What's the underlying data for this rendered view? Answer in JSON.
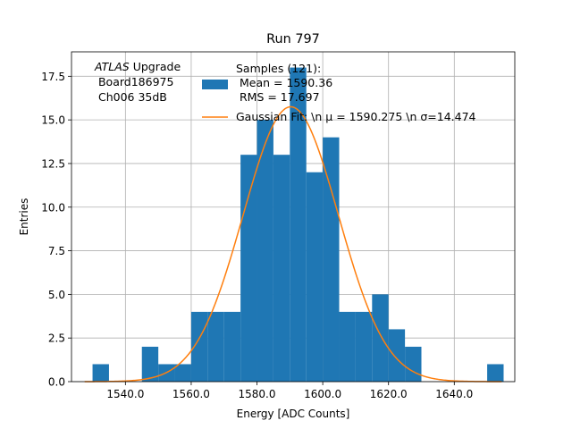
{
  "chart_data": {
    "type": "bar",
    "title": "Run 797",
    "xlabel": "Energy [ADC Counts]",
    "ylabel": "Entries",
    "xlim": [
      1523.6,
      1658.4
    ],
    "ylim": [
      0,
      18.9
    ],
    "xticks": [
      1540,
      1560,
      1580,
      1600,
      1620,
      1640
    ],
    "xtick_labels": [
      "1540.0",
      "1560.0",
      "1580.0",
      "1600.0",
      "1620.0",
      "1640.0"
    ],
    "yticks": [
      0,
      2.5,
      5,
      7.5,
      10,
      12.5,
      15,
      17.5
    ],
    "ytick_labels": [
      "0.0",
      "2.5",
      "5.0",
      "7.5",
      "10.0",
      "12.5",
      "15.0",
      "17.5"
    ],
    "grid": true,
    "bin_width": 5,
    "bin_starts": [
      1530,
      1535,
      1540,
      1545,
      1550,
      1555,
      1560,
      1565,
      1570,
      1575,
      1580,
      1585,
      1590,
      1595,
      1600,
      1605,
      1610,
      1615,
      1620,
      1625,
      1630,
      1635,
      1640,
      1645,
      1650
    ],
    "counts": [
      1,
      0,
      0,
      2,
      1,
      1,
      4,
      4,
      4,
      13,
      15,
      13,
      18,
      12,
      14,
      4,
      4,
      5,
      3,
      2,
      0,
      0,
      0,
      0,
      1
    ],
    "hist_color": "#1f77b4",
    "fit": {
      "mu": 1590.275,
      "sigma": 14.474,
      "amplitude": 15.75,
      "color": "#ff7f0e"
    },
    "annotation": {
      "italic": "ATLAS",
      "rest": " Upgrade",
      "lines": [
        " Board186975",
        " Ch006 35dB"
      ]
    },
    "legend": {
      "placement": "top-right",
      "samples_lines": [
        "Samples (121):",
        " Mean = 1590.36",
        " RMS = 17.697"
      ],
      "fit_label": "Gaussian Fit: \\n μ = 1590.275 \\n σ=14.474"
    }
  }
}
